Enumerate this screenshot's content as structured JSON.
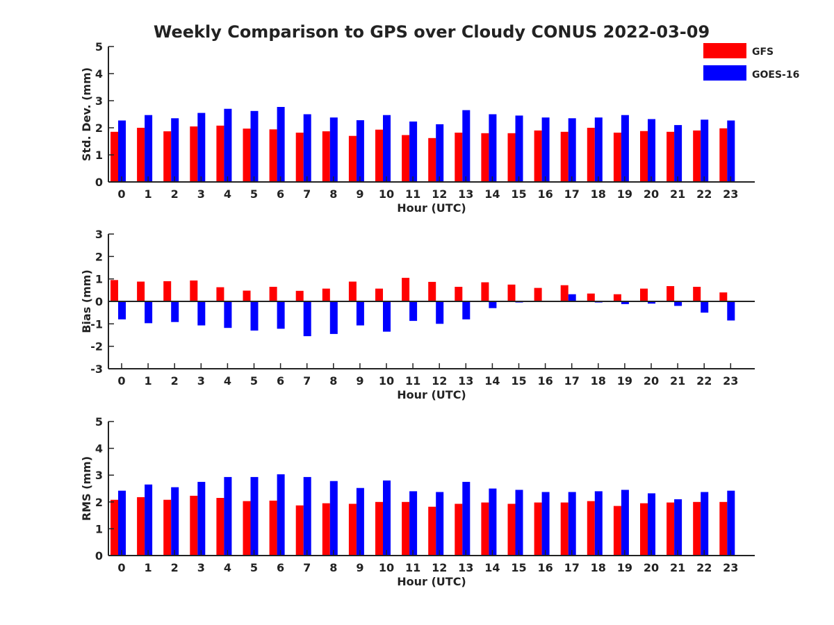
{
  "chart_data": {
    "type": "bar",
    "title": "Weekly Comparison to GPS over Cloudy CONUS 2022-03-09",
    "categories": [
      "0",
      "1",
      "2",
      "3",
      "4",
      "5",
      "6",
      "7",
      "8",
      "9",
      "10",
      "11",
      "12",
      "13",
      "14",
      "15",
      "16",
      "17",
      "18",
      "19",
      "20",
      "21",
      "22",
      "23"
    ],
    "legend": {
      "placement": "top-right",
      "entries": [
        "GFS",
        "GOES-16"
      ]
    },
    "colors": {
      "GFS": "#ff0000",
      "GOES-16": "#0000ff"
    },
    "panels": [
      {
        "xlabel": "Hour (UTC)",
        "ylabel": "Std. Dev. (mm)",
        "ylim": [
          0,
          5
        ],
        "yticks": [
          0,
          1,
          2,
          3,
          4,
          5
        ],
        "series": [
          {
            "name": "GFS",
            "values": [
              1.85,
              2.0,
              1.87,
              2.05,
              2.08,
              1.97,
              1.94,
              1.82,
              1.87,
              1.7,
              1.93,
              1.73,
              1.62,
              1.82,
              1.8,
              1.8,
              1.9,
              1.85,
              2.0,
              1.82,
              1.88,
              1.85,
              1.9,
              1.98
            ]
          },
          {
            "name": "GOES-16",
            "values": [
              2.27,
              2.47,
              2.35,
              2.55,
              2.7,
              2.62,
              2.77,
              2.5,
              2.38,
              2.28,
              2.47,
              2.23,
              2.13,
              2.65,
              2.5,
              2.45,
              2.38,
              2.35,
              2.38,
              2.47,
              2.32,
              2.1,
              2.3,
              2.27
            ]
          }
        ]
      },
      {
        "xlabel": "Hour (UTC)",
        "ylabel": "Bias (mm)",
        "ylim": [
          -3,
          3
        ],
        "yticks": [
          -3,
          -2,
          -1,
          0,
          1,
          2,
          3
        ],
        "series": [
          {
            "name": "GFS",
            "values": [
              0.95,
              0.88,
              0.9,
              0.93,
              0.63,
              0.48,
              0.65,
              0.47,
              0.57,
              0.88,
              0.57,
              1.05,
              0.87,
              0.65,
              0.85,
              0.75,
              0.6,
              0.72,
              0.35,
              0.32,
              0.57,
              0.68,
              0.65,
              0.4
            ]
          },
          {
            "name": "GOES-16",
            "values": [
              -0.8,
              -0.97,
              -0.92,
              -1.07,
              -1.18,
              -1.3,
              -1.22,
              -1.55,
              -1.45,
              -1.07,
              -1.35,
              -0.87,
              -1.0,
              -0.8,
              -0.3,
              -0.05,
              0.02,
              0.32,
              -0.05,
              -0.12,
              -0.1,
              -0.2,
              -0.5,
              -0.85
            ]
          }
        ]
      },
      {
        "xlabel": "Hour (UTC)",
        "ylabel": "RMS (mm)",
        "ylim": [
          0,
          5
        ],
        "yticks": [
          0,
          1,
          2,
          3,
          4,
          5
        ],
        "series": [
          {
            "name": "GFS",
            "values": [
              2.08,
              2.18,
              2.08,
              2.23,
              2.15,
              2.03,
              2.05,
              1.87,
              1.95,
              1.93,
              2.0,
              2.0,
              1.82,
              1.93,
              1.98,
              1.93,
              1.98,
              1.98,
              2.03,
              1.85,
              1.95,
              1.98,
              2.0,
              2.0
            ]
          },
          {
            "name": "GOES-16",
            "values": [
              2.42,
              2.65,
              2.55,
              2.75,
              2.93,
              2.93,
              3.03,
              2.93,
              2.78,
              2.52,
              2.8,
              2.4,
              2.37,
              2.75,
              2.5,
              2.45,
              2.37,
              2.37,
              2.4,
              2.45,
              2.32,
              2.1,
              2.37,
              2.42
            ]
          }
        ]
      }
    ]
  }
}
